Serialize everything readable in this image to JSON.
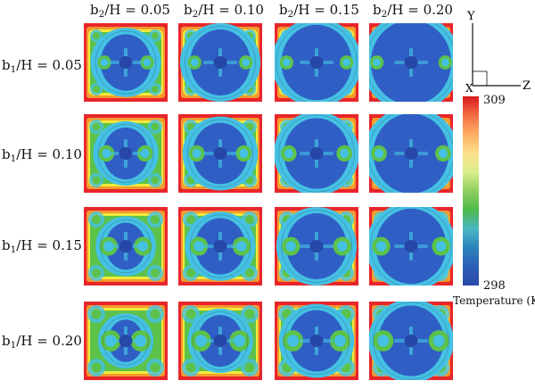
{
  "columns": [
    {
      "var": "b",
      "sub": "2",
      "rest": "/H = 0.05"
    },
    {
      "var": "b",
      "sub": "2",
      "rest": "/H = 0.10"
    },
    {
      "var": "b",
      "sub": "2",
      "rest": "/H = 0.15"
    },
    {
      "var": "b",
      "sub": "2",
      "rest": "/H = 0.20"
    }
  ],
  "rows": [
    {
      "var": "b",
      "sub": "1",
      "rest": "/H = 0.05"
    },
    {
      "var": "b",
      "sub": "1",
      "rest": "/H = 0.10"
    },
    {
      "var": "b",
      "sub": "1",
      "rest": "/H = 0.15"
    },
    {
      "var": "b",
      "sub": "1",
      "rest": "/H = 0.20"
    }
  ],
  "axes": {
    "y": "Y",
    "z": "Z",
    "x": "X"
  },
  "colorbar": {
    "max": "309",
    "min": "298",
    "title": "Temperature (K)",
    "colors": [
      "#d7191c",
      "#f46d43",
      "#fdae61",
      "#fee08b",
      "#d9ef8b",
      "#91cf60",
      "#4cb94a",
      "#4bb7c4",
      "#2b83ba",
      "#2c5fb8",
      "#2b4aa8"
    ]
  },
  "palette": {
    "hot": "#e8262a",
    "orange": "#f59a2e",
    "yellow": "#f2ea3a",
    "green": "#5cc24a",
    "cyan": "#45c1e3",
    "blue": "#2f5fc4",
    "deep": "#2747a8"
  }
}
